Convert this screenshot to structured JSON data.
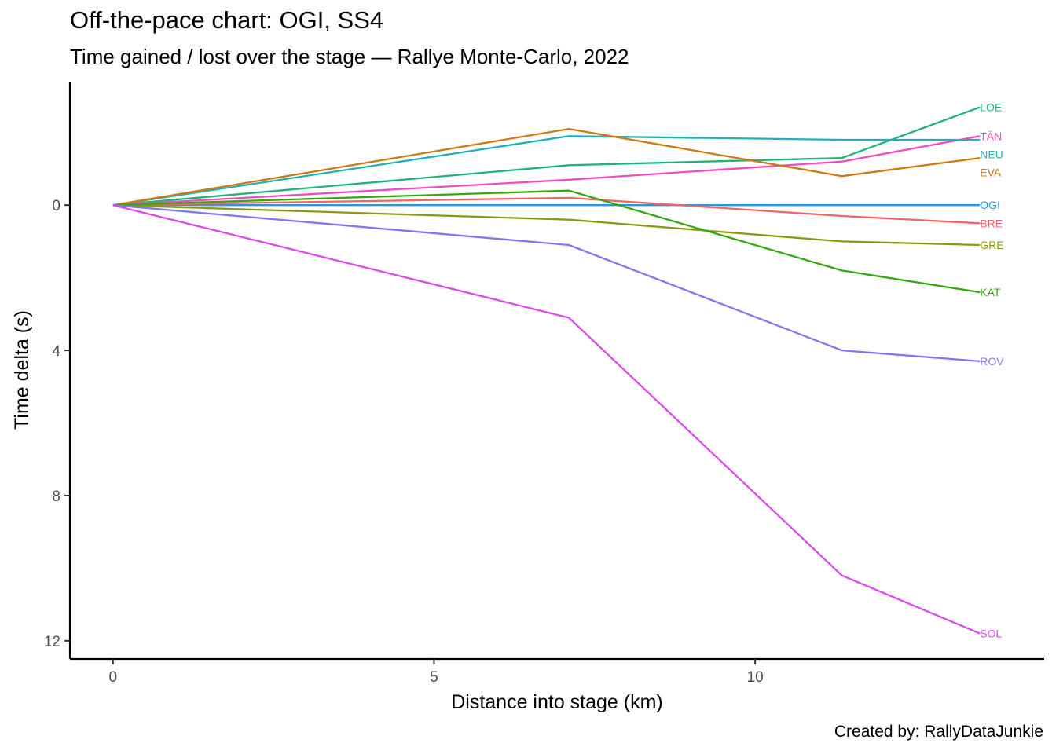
{
  "chart_data": {
    "type": "line",
    "title": "Off-the-pace chart: OGI, SS4",
    "subtitle": "Time gained / lost over the stage — Rallye Monte-Carlo, 2022",
    "caption": "Created by: RallyDataJunkie",
    "xlabel": "Distance into stage (km)",
    "ylabel": "Time delta (s)",
    "xlim": [
      -0.67,
      14.5
    ],
    "ylim": [
      -3.4,
      12.5
    ],
    "y_reversed": true,
    "x_ticks": [
      0,
      5,
      10
    ],
    "y_ticks": [
      0,
      4,
      8,
      12
    ],
    "grid": false,
    "legend": "none (direct end labels)",
    "series": [
      {
        "name": "LOE",
        "color": "#1FB37B",
        "x": [
          0,
          7.1,
          11.35,
          13.5
        ],
        "y": [
          0,
          -1.1,
          -1.3,
          -2.7
        ]
      },
      {
        "name": "TÄN",
        "color": "#F14CC1",
        "x": [
          0,
          7.1,
          11.35,
          13.5
        ],
        "y": [
          0,
          -0.7,
          -1.2,
          -1.9
        ]
      },
      {
        "name": "NEU",
        "color": "#1EB2B6",
        "x": [
          0,
          7.1,
          11.35,
          13.5
        ],
        "y": [
          0,
          -1.9,
          -1.8,
          -1.8
        ]
      },
      {
        "name": "EVA",
        "color": "#CD7A10",
        "x": [
          0,
          7.1,
          11.35,
          13.5
        ],
        "y": [
          0,
          -2.1,
          -0.8,
          -1.3
        ]
      },
      {
        "name": "OGI",
        "color": "#2596E0",
        "x": [
          0,
          7.1,
          11.35,
          13.5
        ],
        "y": [
          0,
          0,
          0,
          0
        ]
      },
      {
        "name": "BRE",
        "color": "#F06565",
        "x": [
          0,
          7.1,
          11.35,
          13.5
        ],
        "y": [
          0,
          -0.2,
          0.3,
          0.5
        ]
      },
      {
        "name": "GRE",
        "color": "#8C9716",
        "x": [
          0,
          7.1,
          11.35,
          13.5
        ],
        "y": [
          0,
          0.4,
          1.0,
          1.1
        ]
      },
      {
        "name": "KAT",
        "color": "#36A80F",
        "x": [
          0,
          7.1,
          11.35,
          13.5
        ],
        "y": [
          0,
          -0.4,
          1.8,
          2.4
        ]
      },
      {
        "name": "ROV",
        "color": "#8277F2",
        "x": [
          0,
          7.1,
          11.35,
          13.5
        ],
        "y": [
          0,
          1.1,
          4.0,
          4.3
        ]
      },
      {
        "name": "SOL",
        "color": "#DB4AEA",
        "x": [
          0,
          7.1,
          11.35,
          13.5
        ],
        "y": [
          0,
          3.1,
          10.2,
          11.8
        ]
      }
    ]
  }
}
